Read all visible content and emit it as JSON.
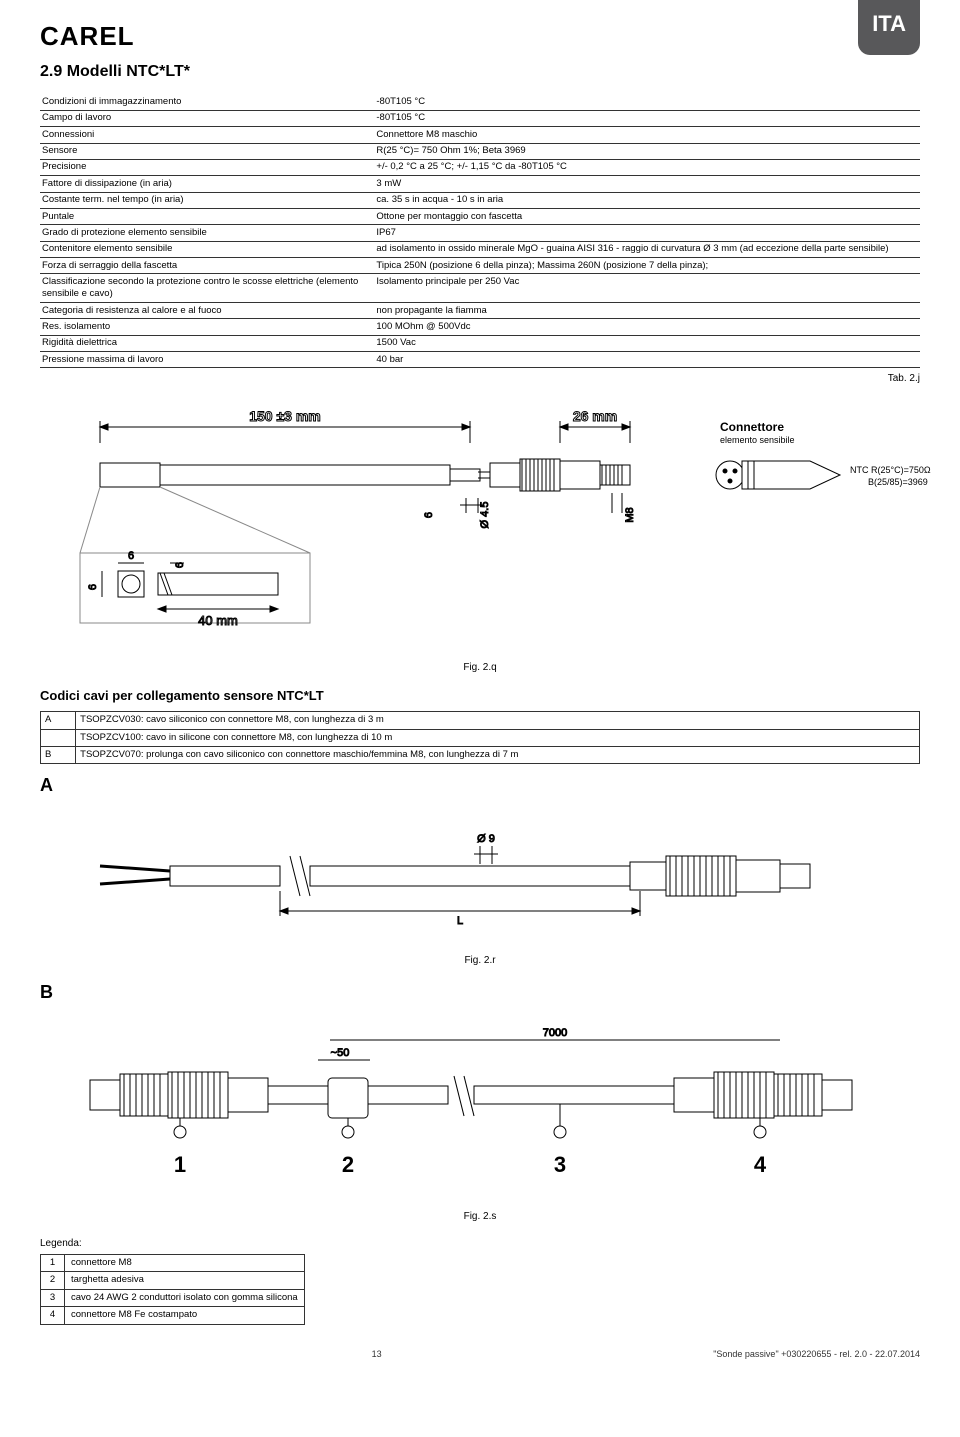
{
  "header": {
    "brand": "CAREL",
    "lang_badge": "ITA",
    "section_title": "2.9  Modelli NTC*LT*"
  },
  "spec_table": {
    "rows": [
      [
        "Condizioni di immagazzinamento",
        "-80T105 °C"
      ],
      [
        "Campo di lavoro",
        "-80T105 °C"
      ],
      [
        "Connessioni",
        "Connettore M8 maschio"
      ],
      [
        "Sensore",
        "R(25 °C)= 750 Ohm 1%; Beta 3969"
      ],
      [
        "Precisione",
        "+/- 0,2 °C a 25 °C; +/- 1,15 °C da -80T105 °C"
      ],
      [
        "Fattore di dissipazione (in aria)",
        "3 mW"
      ],
      [
        "Costante term. nel tempo (in aria)",
        "ca. 35 s in acqua - 10 s in aria"
      ],
      [
        "Puntale",
        "Ottone per montaggio con fascetta"
      ],
      [
        "Grado di protezione elemento sensibile",
        "IP67"
      ],
      [
        "Contenitore elemento sensibile",
        "ad isolamento in ossido minerale MgO - guaina AISI 316 - raggio di curvatura Ø 3 mm (ad eccezione della parte sensibile)"
      ],
      [
        "Forza di serraggio della fascetta",
        "Tipica 250N (posizione 6 della pinza); Massima 260N (posizione 7 della pinza);"
      ],
      [
        "Classificazione secondo la protezione contro le scosse elettriche (elemento sensibile e cavo)",
        "Isolamento principale per 250 Vac"
      ],
      [
        "Categoria di resistenza al calore e al fuoco",
        "non propagante la fiamma"
      ],
      [
        "Res. isolamento",
        "100 MOhm @ 500Vdc"
      ],
      [
        "Rigidità dielettrica",
        "1500 Vac"
      ],
      [
        "Pressione massima di lavoro",
        "40 bar"
      ]
    ],
    "ref": "Tab. 2.j"
  },
  "diagram_main": {
    "dim_main": "150 ±3 mm",
    "dim_conn": "26 mm",
    "dim_diam": "Ø 4.5",
    "dim_thread": "M8",
    "dim_h": "6",
    "dim_detail": "40 mm",
    "conn_label": "Connettore",
    "conn_sub": "elemento sensibile",
    "ntc_line1": "NTC R(25°C)=750Ω",
    "ntc_line2": "B(25/85)=3969",
    "fig": "Fig. 2.q"
  },
  "codes_section": {
    "title": "Codici cavi per collegamento sensore NTC*LT",
    "rows": [
      {
        "label": "A",
        "text": "TSOPZCV030: cavo siliconico con connettore M8, con lunghezza di 3 m"
      },
      {
        "label": "",
        "text": "TSOPZCV100: cavo in silicone con connettore M8, con lunghezza di 10 m"
      },
      {
        "label": "B",
        "text": "TSOPZCV070: prolunga con cavo siliconico con connettore maschio/femmina M8, con lunghezza di 7 m"
      }
    ]
  },
  "diagram_a": {
    "letter": "A",
    "dim_diam": "Ø 9",
    "dim_len": "L",
    "fig": "Fig. 2.r"
  },
  "diagram_b": {
    "letter": "B",
    "dim_total": "7000",
    "dim_local": "~50",
    "callouts": [
      "1",
      "2",
      "3",
      "4"
    ],
    "fig": "Fig. 2.s"
  },
  "legend": {
    "title": "Legenda:",
    "rows": [
      [
        "1",
        "connettore M8"
      ],
      [
        "2",
        "targhetta adesiva"
      ],
      [
        "3",
        "cavo 24 AWG 2 conduttori isolato con gomma silicona"
      ],
      [
        "4",
        "connettore M8 Fe costampato"
      ]
    ]
  },
  "footer": {
    "page": "13",
    "doc": "\"Sonde passive\" +030220655 - rel. 2.0 - 22.07.2014"
  },
  "colors": {
    "text": "#000000",
    "tab_bg": "#58585a",
    "tab_fg": "#ffffff",
    "line": "#333333"
  }
}
